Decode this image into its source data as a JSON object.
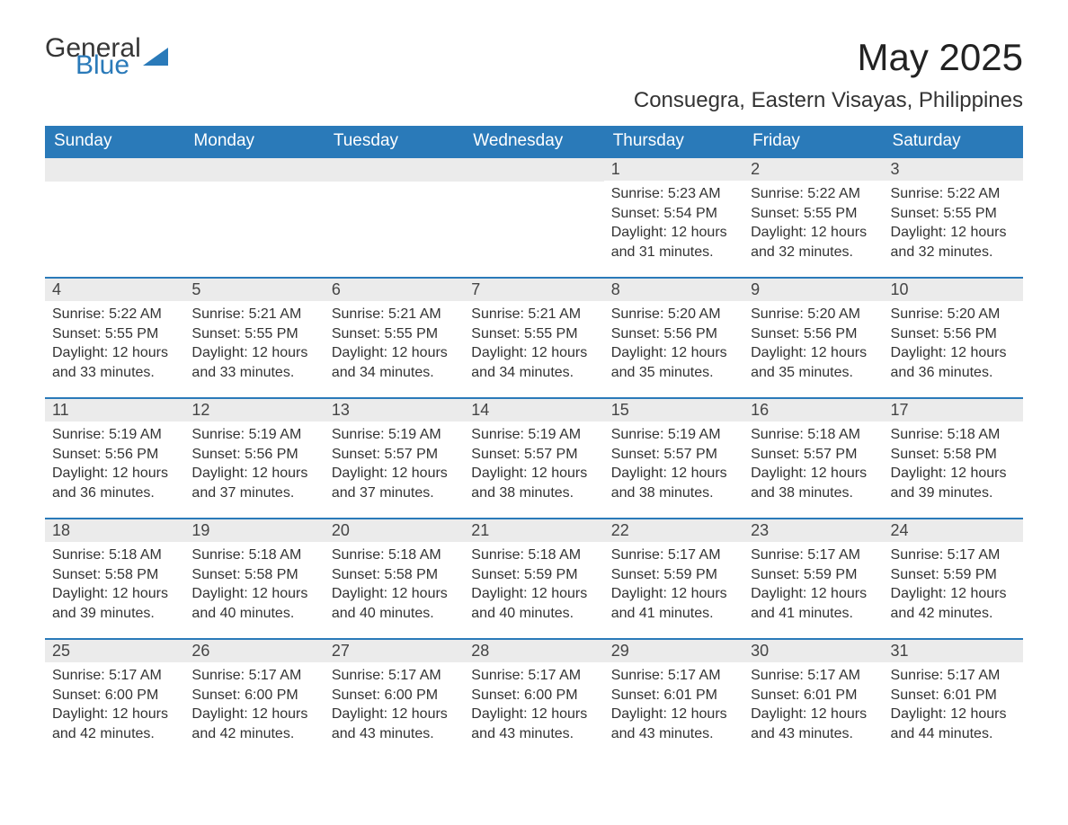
{
  "brand": {
    "word1": "General",
    "word2": "Blue",
    "accent_color": "#2a7ab9",
    "text_color": "#363636"
  },
  "title": "May 2025",
  "subtitle": "Consuegra, Eastern Visayas, Philippines",
  "colors": {
    "header_bg": "#2a7ab9",
    "header_text": "#ffffff",
    "daynum_bg": "#ebebeb",
    "row_border": "#2a7ab9",
    "body_text": "#333333",
    "page_bg": "#ffffff"
  },
  "fonts": {
    "title_size": 42,
    "subtitle_size": 24,
    "header_size": 19,
    "daynum_size": 18,
    "cell_size": 16
  },
  "layout": {
    "columns": 7,
    "rows": 5,
    "week_start": "Sunday"
  },
  "columns": [
    "Sunday",
    "Monday",
    "Tuesday",
    "Wednesday",
    "Thursday",
    "Friday",
    "Saturday"
  ],
  "weeks": [
    [
      null,
      null,
      null,
      null,
      {
        "d": "1",
        "sr": "Sunrise: 5:23 AM",
        "ss": "Sunset: 5:54 PM",
        "dl1": "Daylight: 12 hours",
        "dl2": "and 31 minutes."
      },
      {
        "d": "2",
        "sr": "Sunrise: 5:22 AM",
        "ss": "Sunset: 5:55 PM",
        "dl1": "Daylight: 12 hours",
        "dl2": "and 32 minutes."
      },
      {
        "d": "3",
        "sr": "Sunrise: 5:22 AM",
        "ss": "Sunset: 5:55 PM",
        "dl1": "Daylight: 12 hours",
        "dl2": "and 32 minutes."
      }
    ],
    [
      {
        "d": "4",
        "sr": "Sunrise: 5:22 AM",
        "ss": "Sunset: 5:55 PM",
        "dl1": "Daylight: 12 hours",
        "dl2": "and 33 minutes."
      },
      {
        "d": "5",
        "sr": "Sunrise: 5:21 AM",
        "ss": "Sunset: 5:55 PM",
        "dl1": "Daylight: 12 hours",
        "dl2": "and 33 minutes."
      },
      {
        "d": "6",
        "sr": "Sunrise: 5:21 AM",
        "ss": "Sunset: 5:55 PM",
        "dl1": "Daylight: 12 hours",
        "dl2": "and 34 minutes."
      },
      {
        "d": "7",
        "sr": "Sunrise: 5:21 AM",
        "ss": "Sunset: 5:55 PM",
        "dl1": "Daylight: 12 hours",
        "dl2": "and 34 minutes."
      },
      {
        "d": "8",
        "sr": "Sunrise: 5:20 AM",
        "ss": "Sunset: 5:56 PM",
        "dl1": "Daylight: 12 hours",
        "dl2": "and 35 minutes."
      },
      {
        "d": "9",
        "sr": "Sunrise: 5:20 AM",
        "ss": "Sunset: 5:56 PM",
        "dl1": "Daylight: 12 hours",
        "dl2": "and 35 minutes."
      },
      {
        "d": "10",
        "sr": "Sunrise: 5:20 AM",
        "ss": "Sunset: 5:56 PM",
        "dl1": "Daylight: 12 hours",
        "dl2": "and 36 minutes."
      }
    ],
    [
      {
        "d": "11",
        "sr": "Sunrise: 5:19 AM",
        "ss": "Sunset: 5:56 PM",
        "dl1": "Daylight: 12 hours",
        "dl2": "and 36 minutes."
      },
      {
        "d": "12",
        "sr": "Sunrise: 5:19 AM",
        "ss": "Sunset: 5:56 PM",
        "dl1": "Daylight: 12 hours",
        "dl2": "and 37 minutes."
      },
      {
        "d": "13",
        "sr": "Sunrise: 5:19 AM",
        "ss": "Sunset: 5:57 PM",
        "dl1": "Daylight: 12 hours",
        "dl2": "and 37 minutes."
      },
      {
        "d": "14",
        "sr": "Sunrise: 5:19 AM",
        "ss": "Sunset: 5:57 PM",
        "dl1": "Daylight: 12 hours",
        "dl2": "and 38 minutes."
      },
      {
        "d": "15",
        "sr": "Sunrise: 5:19 AM",
        "ss": "Sunset: 5:57 PM",
        "dl1": "Daylight: 12 hours",
        "dl2": "and 38 minutes."
      },
      {
        "d": "16",
        "sr": "Sunrise: 5:18 AM",
        "ss": "Sunset: 5:57 PM",
        "dl1": "Daylight: 12 hours",
        "dl2": "and 38 minutes."
      },
      {
        "d": "17",
        "sr": "Sunrise: 5:18 AM",
        "ss": "Sunset: 5:58 PM",
        "dl1": "Daylight: 12 hours",
        "dl2": "and 39 minutes."
      }
    ],
    [
      {
        "d": "18",
        "sr": "Sunrise: 5:18 AM",
        "ss": "Sunset: 5:58 PM",
        "dl1": "Daylight: 12 hours",
        "dl2": "and 39 minutes."
      },
      {
        "d": "19",
        "sr": "Sunrise: 5:18 AM",
        "ss": "Sunset: 5:58 PM",
        "dl1": "Daylight: 12 hours",
        "dl2": "and 40 minutes."
      },
      {
        "d": "20",
        "sr": "Sunrise: 5:18 AM",
        "ss": "Sunset: 5:58 PM",
        "dl1": "Daylight: 12 hours",
        "dl2": "and 40 minutes."
      },
      {
        "d": "21",
        "sr": "Sunrise: 5:18 AM",
        "ss": "Sunset: 5:59 PM",
        "dl1": "Daylight: 12 hours",
        "dl2": "and 40 minutes."
      },
      {
        "d": "22",
        "sr": "Sunrise: 5:17 AM",
        "ss": "Sunset: 5:59 PM",
        "dl1": "Daylight: 12 hours",
        "dl2": "and 41 minutes."
      },
      {
        "d": "23",
        "sr": "Sunrise: 5:17 AM",
        "ss": "Sunset: 5:59 PM",
        "dl1": "Daylight: 12 hours",
        "dl2": "and 41 minutes."
      },
      {
        "d": "24",
        "sr": "Sunrise: 5:17 AM",
        "ss": "Sunset: 5:59 PM",
        "dl1": "Daylight: 12 hours",
        "dl2": "and 42 minutes."
      }
    ],
    [
      {
        "d": "25",
        "sr": "Sunrise: 5:17 AM",
        "ss": "Sunset: 6:00 PM",
        "dl1": "Daylight: 12 hours",
        "dl2": "and 42 minutes."
      },
      {
        "d": "26",
        "sr": "Sunrise: 5:17 AM",
        "ss": "Sunset: 6:00 PM",
        "dl1": "Daylight: 12 hours",
        "dl2": "and 42 minutes."
      },
      {
        "d": "27",
        "sr": "Sunrise: 5:17 AM",
        "ss": "Sunset: 6:00 PM",
        "dl1": "Daylight: 12 hours",
        "dl2": "and 43 minutes."
      },
      {
        "d": "28",
        "sr": "Sunrise: 5:17 AM",
        "ss": "Sunset: 6:00 PM",
        "dl1": "Daylight: 12 hours",
        "dl2": "and 43 minutes."
      },
      {
        "d": "29",
        "sr": "Sunrise: 5:17 AM",
        "ss": "Sunset: 6:01 PM",
        "dl1": "Daylight: 12 hours",
        "dl2": "and 43 minutes."
      },
      {
        "d": "30",
        "sr": "Sunrise: 5:17 AM",
        "ss": "Sunset: 6:01 PM",
        "dl1": "Daylight: 12 hours",
        "dl2": "and 43 minutes."
      },
      {
        "d": "31",
        "sr": "Sunrise: 5:17 AM",
        "ss": "Sunset: 6:01 PM",
        "dl1": "Daylight: 12 hours",
        "dl2": "and 44 minutes."
      }
    ]
  ]
}
